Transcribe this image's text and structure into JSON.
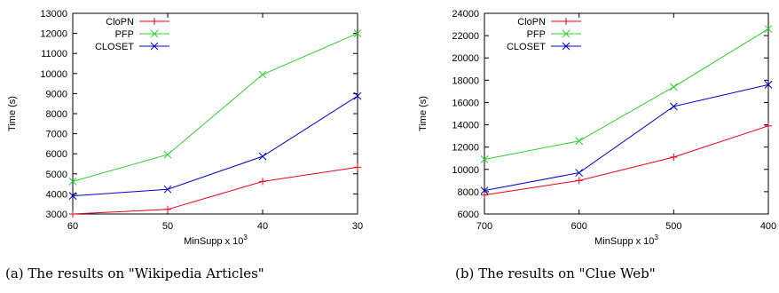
{
  "chart_data": [
    {
      "type": "line",
      "caption": "(a) The results on \"Wikipedia Articles\"",
      "xlabel": "MinSupp x 10",
      "xlabel_exponent": "3",
      "ylabel": "Time (s)",
      "categories": [
        "60",
        "50",
        "40",
        "30"
      ],
      "ylim": [
        3000,
        13000
      ],
      "yticks": [
        3000,
        4000,
        5000,
        6000,
        7000,
        8000,
        9000,
        10000,
        11000,
        12000,
        13000
      ],
      "legend_position": "top-left",
      "grid": false,
      "series": [
        {
          "name": "CloPN",
          "marker": "+",
          "color": "#e8001c",
          "values": [
            3000,
            3230,
            4620,
            5330
          ]
        },
        {
          "name": "PFP",
          "marker": "x",
          "color": "#2fd02f",
          "values": [
            4620,
            5960,
            9950,
            12000
          ]
        },
        {
          "name": "CLOSET",
          "marker": "x",
          "color": "#0000cc",
          "values": [
            3900,
            4230,
            5870,
            8880
          ]
        }
      ]
    },
    {
      "type": "line",
      "caption": "(b) The results on \"Clue Web\"",
      "xlabel": "MinSupp x 10",
      "xlabel_exponent": "3",
      "ylabel": "Time (s)",
      "categories": [
        "700",
        "600",
        "500",
        "400"
      ],
      "ylim": [
        6000,
        24000
      ],
      "yticks": [
        6000,
        8000,
        10000,
        12000,
        14000,
        16000,
        18000,
        20000,
        22000,
        24000
      ],
      "legend_position": "top-left",
      "grid": false,
      "series": [
        {
          "name": "CloPN",
          "marker": "+",
          "color": "#e8001c",
          "values": [
            7700,
            9000,
            11100,
            13900
          ]
        },
        {
          "name": "PFP",
          "marker": "x",
          "color": "#2fd02f",
          "values": [
            10900,
            12550,
            17400,
            22600
          ]
        },
        {
          "name": "CLOSET",
          "marker": "x",
          "color": "#0000cc",
          "values": [
            8100,
            9700,
            15650,
            17600
          ]
        }
      ]
    }
  ]
}
